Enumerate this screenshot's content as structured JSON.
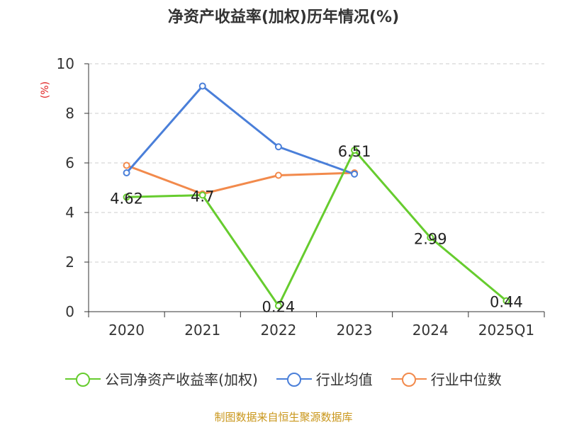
{
  "chart_data": {
    "type": "line",
    "title": "净资产收益率(加权)历年情况(%)",
    "ylabel": "(%)",
    "xlabel": "",
    "categories": [
      "2020",
      "2021",
      "2022",
      "2023",
      "2024",
      "2025Q1"
    ],
    "ylim": [
      0,
      10
    ],
    "yticks": [
      0,
      2,
      4,
      6,
      8,
      10
    ],
    "grid": true,
    "legend_position": "bottom",
    "series": [
      {
        "name": "公司净资产收益率(加权)",
        "color": "#66cc2e",
        "values": [
          4.62,
          4.7,
          0.24,
          6.51,
          2.99,
          0.44
        ],
        "labels": [
          "4.62",
          "4.7",
          "0.24",
          "6.51",
          "2.99",
          "0.44"
        ]
      },
      {
        "name": "行业均值",
        "color": "#4a7fd9",
        "values": [
          5.6,
          9.1,
          6.65,
          5.55,
          null,
          null
        ]
      },
      {
        "name": "行业中位数",
        "color": "#f28a4c",
        "values": [
          5.9,
          4.75,
          5.5,
          5.6,
          null,
          null
        ]
      }
    ]
  },
  "source_note": "制图数据来自恒生聚源数据库"
}
